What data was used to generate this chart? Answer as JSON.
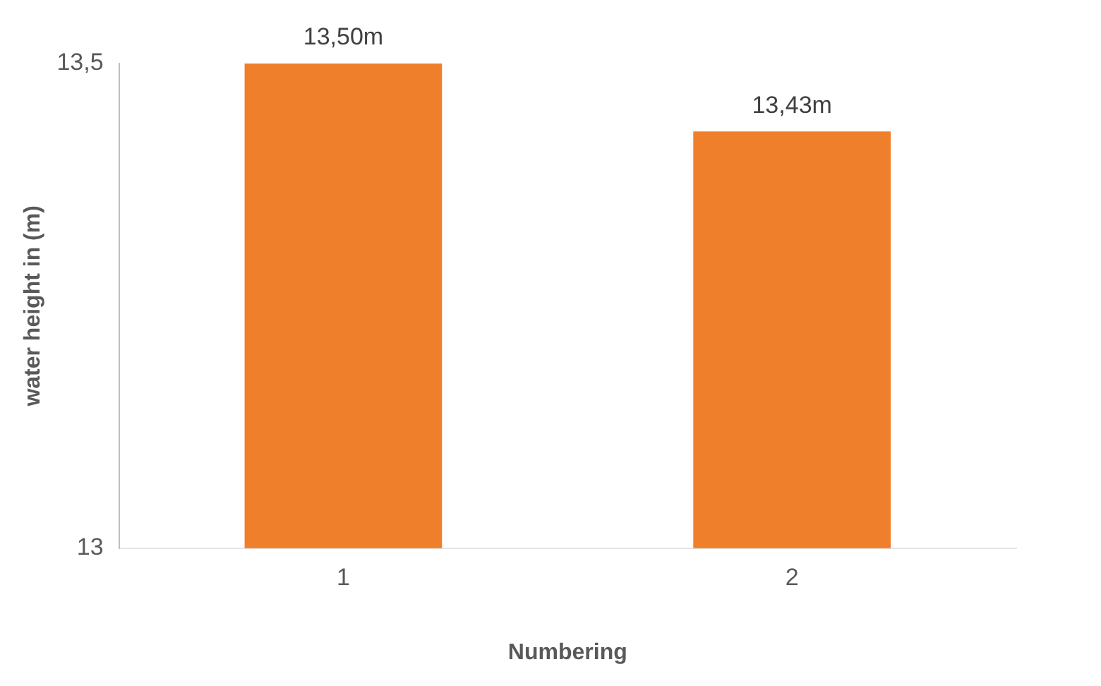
{
  "chart_data": {
    "type": "bar",
    "xlabel": "Numbering",
    "ylabel": "water height in (m)",
    "categories": [
      "1",
      "2"
    ],
    "values": [
      13.5,
      13.43
    ],
    "value_labels": [
      "13,50m",
      "13,43m"
    ],
    "color": "#f07f2c",
    "ylim": [
      13,
      13.5
    ],
    "yticks": [
      13,
      {
        "value": 13.5,
        "label": "13,5"
      }
    ],
    "grid": false,
    "legend": false
  }
}
